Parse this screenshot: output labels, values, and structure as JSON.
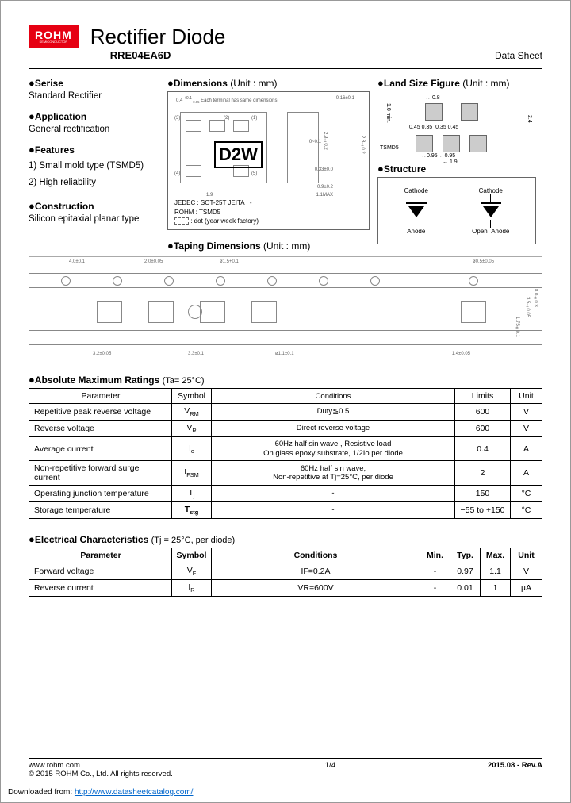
{
  "logo": {
    "main": "ROHM",
    "sub": "SEMICONDUCTOR"
  },
  "title": "Rectifier Diode",
  "part_number": "RRE04EA6D",
  "doc_type": "Data Sheet",
  "sections": {
    "series": {
      "head": "Serise",
      "text": "Standard Rectifier"
    },
    "application": {
      "head": "Application",
      "text": "General rectification"
    },
    "features": {
      "head": "Features",
      "items": [
        "1)  Small mold type (TSMD5)",
        "2)  High reliability"
      ]
    },
    "construction": {
      "head": "Construction",
      "text": "Silicon epitaxial planar type"
    },
    "dimensions": {
      "head": "Dimensions",
      "unit": "(Unit : mm)",
      "mark": "D2W",
      "jedec": "JEDEC : SOT-25T    JEITA : -",
      "rohm": "ROHM  : TSMD5",
      "dot": " : dot (year week factory)"
    },
    "landsize": {
      "head": "Land Size Figure",
      "unit": "(Unit : mm)",
      "pkg": "TSMD5",
      "d1": "0.45",
      "d2": "0.35",
      "d3": "0.35",
      "d4": "0.45",
      "d5": "0.95",
      "d6": "0.95",
      "d7": "1.9",
      "d8": "0.8",
      "d9": "1.0 min.",
      "d10": "2.4"
    },
    "structure": {
      "head": "Structure",
      "cathode": "Cathode",
      "anode": "Anode",
      "open": "Open"
    },
    "taping": {
      "head": "Taping Dimensions",
      "unit": "(Unit : mm)"
    }
  },
  "absmax": {
    "title": "Absolute Maximum Ratings",
    "cond": "(Ta= 25°C)",
    "headers": [
      "Parameter",
      "Symbol",
      "Conditions",
      "Limits",
      "Unit"
    ],
    "rows": [
      {
        "p": "Repetitive peak reverse voltage",
        "s": "V",
        "sub": "RM",
        "c": "Duty≦0.5",
        "l": "600",
        "u": "V"
      },
      {
        "p": "Reverse voltage",
        "s": "V",
        "sub": "R",
        "c": "Direct reverse voltage",
        "l": "600",
        "u": "V"
      },
      {
        "p": "Average current",
        "s": "I",
        "sub": "o",
        "c": "60Hz half sin wave , Resistive load\nOn glass epoxy substrate, 1/2Io per diode",
        "l": "0.4",
        "u": "A"
      },
      {
        "p": "Non-repetitive forward surge current",
        "s": "I",
        "sub": "FSM",
        "c": "60Hz half sin wave,\nNon-repetitive at Tj=25°C, per diode",
        "l": "2",
        "u": "A"
      },
      {
        "p": "Operating junction temperature",
        "s": "T",
        "sub": "j",
        "c": "-",
        "l": "150",
        "u": "°C"
      },
      {
        "p": "Storage temperature",
        "s": "T",
        "sub": "stg",
        "c": "-",
        "l": "−55 to +150",
        "u": "°C",
        "bold": true
      }
    ]
  },
  "elec": {
    "title": "Electrical Characteristics",
    "cond": "(Tj = 25°C, per diode)",
    "headers": [
      "Parameter",
      "Symbol",
      "Conditions",
      "Min.",
      "Typ.",
      "Max.",
      "Unit"
    ],
    "rows": [
      {
        "p": "Forward voltage",
        "s": "V",
        "sub": "F",
        "c": "IF=0.2A",
        "min": "-",
        "typ": "0.97",
        "max": "1.1",
        "u": "V"
      },
      {
        "p": "Reverse current",
        "s": "I",
        "sub": "R",
        "c": "VR=600V",
        "min": "-",
        "typ": "0.01",
        "max": "1",
        "u": "µA"
      }
    ]
  },
  "footer": {
    "url": "www.rohm.com",
    "copyright": "© 2015  ROHM Co., Ltd. All rights reserved.",
    "page": "1/4",
    "rev": "2015.08 -  Rev.A",
    "download": "Downloaded from:",
    "download_url": "http://www.datasheetcatalog.com/"
  }
}
